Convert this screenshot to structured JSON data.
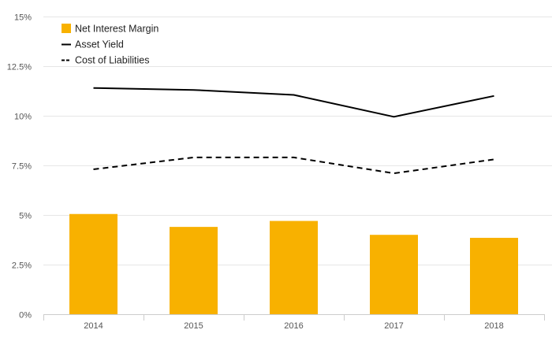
{
  "chart_data": {
    "type": "bar",
    "categories": [
      "2014",
      "2015",
      "2016",
      "2017",
      "2018"
    ],
    "y_ticks": [
      "0%",
      "2.5%",
      "5%",
      "7.5%",
      "10%",
      "12.5%",
      "15%"
    ],
    "ylim": [
      0,
      15
    ],
    "grid": true,
    "legend_position": "top-left",
    "title": "",
    "xlabel": "",
    "ylabel": "",
    "series": [
      {
        "name": "Net Interest Margin",
        "type": "bar",
        "color": "#f8b100",
        "values": [
          5.05,
          4.4,
          4.7,
          4.0,
          3.85
        ]
      },
      {
        "name": "Asset Yield",
        "type": "line",
        "style": "solid",
        "color": "#000000",
        "values": [
          11.4,
          11.3,
          11.05,
          9.95,
          11.0
        ]
      },
      {
        "name": "Cost of Liabilities",
        "type": "line",
        "style": "dashed",
        "color": "#000000",
        "values": [
          7.3,
          7.9,
          7.9,
          7.1,
          7.8
        ]
      }
    ]
  }
}
